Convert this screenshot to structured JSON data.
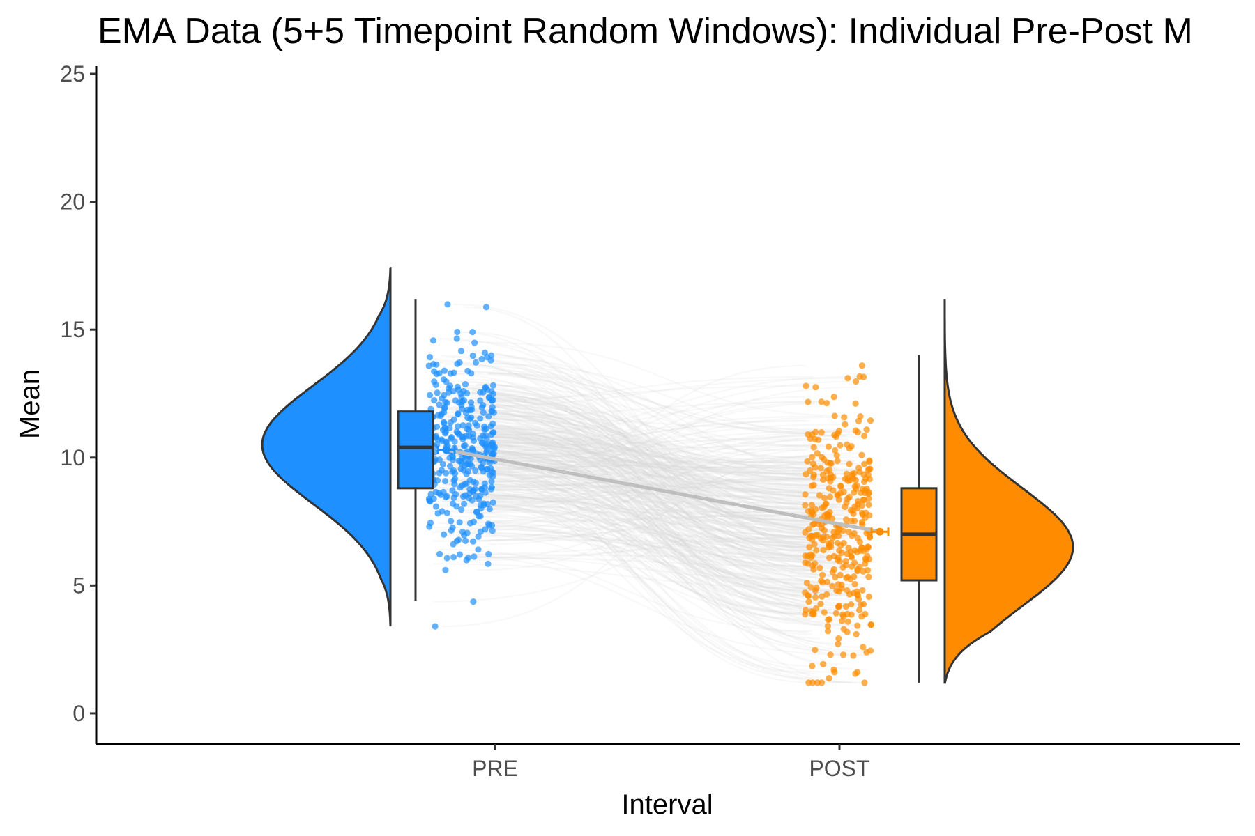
{
  "chart_data": {
    "type": "raincloud",
    "title": "EMA Data (5+5 Timepoint Random Windows): Individual Pre-Post M",
    "xlabel": "Interval",
    "ylabel": "Mean",
    "ylim": [
      -1.2,
      25.3
    ],
    "yticks": [
      0,
      5,
      10,
      15,
      20,
      25
    ],
    "categories": [
      "PRE",
      "POST"
    ],
    "grid": false,
    "legend": "none",
    "colors": {
      "PRE": "#1E90FF",
      "POST": "#FF8C00",
      "lines": "#d9d9d9",
      "mean_line": "#bfbfbf",
      "outline": "#333333"
    },
    "groups": [
      {
        "name": "PRE",
        "box": {
          "min": 4.4,
          "q1": 8.8,
          "median": 10.4,
          "q3": 11.8,
          "max": 16.2
        },
        "mean": 10.3,
        "points_range": [
          3.4,
          17.4
        ],
        "density": {
          "peak": 10.5,
          "min": 3.4,
          "max": 17.4
        }
      },
      {
        "name": "POST",
        "box": {
          "min": 1.2,
          "q1": 5.2,
          "median": 7.0,
          "q3": 8.8,
          "max": 14.0
        },
        "mean": 7.1,
        "points_range": [
          1.2,
          16.2
        ],
        "density": {
          "peak": 6.5,
          "min": 1.2,
          "max": 16.2
        }
      }
    ],
    "mean_line": {
      "from": 10.3,
      "to": 7.1
    }
  }
}
